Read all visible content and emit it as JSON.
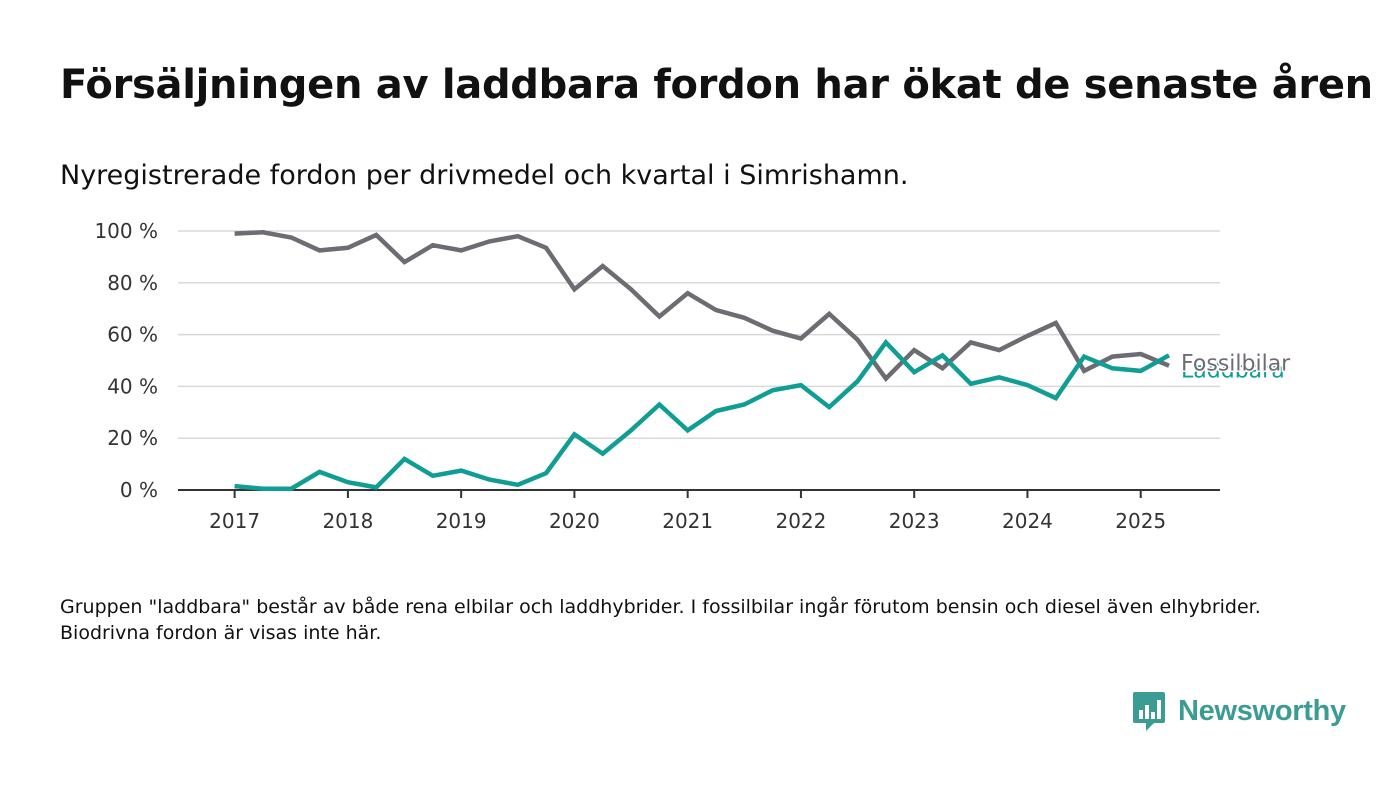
{
  "title": "Försäljningen av laddbara fordon har ökat de senaste åren",
  "subtitle": "Nyregistrerade fordon per drivmedel och kvartal i Simrishamn.",
  "note": "Gruppen \"laddbara\" består av både rena elbilar och laddhybrider. I fossilbilar ingår förutom bensin och diesel även elhybrider. Biodrivna fordon är visas inte här.",
  "logo": {
    "text": "Newsworthy",
    "color": "#3a9c93",
    "icon": "chat-bar-chart-icon"
  },
  "chart_data": {
    "type": "line",
    "title": "",
    "xlabel": "",
    "ylabel": "",
    "x_ticks": [
      "2017",
      "2018",
      "2019",
      "2020",
      "2021",
      "2022",
      "2023",
      "2024",
      "2025"
    ],
    "y_ticks": [
      "0 %",
      "20 %",
      "40 %",
      "60 %",
      "80 %",
      "100 %"
    ],
    "ylim": [
      0,
      100
    ],
    "xlim": [
      2016.5,
      2025.7
    ],
    "grid": true,
    "legend": "inline-right",
    "x": [
      2017.0,
      2017.25,
      2017.5,
      2017.75,
      2018.0,
      2018.25,
      2018.5,
      2018.75,
      2019.0,
      2019.25,
      2019.5,
      2019.75,
      2020.0,
      2020.25,
      2020.5,
      2020.75,
      2021.0,
      2021.25,
      2021.5,
      2021.75,
      2022.0,
      2022.25,
      2022.5,
      2022.75,
      2023.0,
      2023.25,
      2023.5,
      2023.75,
      2024.0,
      2024.25,
      2024.5,
      2024.75,
      2025.0,
      2025.25
    ],
    "series": [
      {
        "name": "Fossilbilar",
        "color": "#6e6c73",
        "values": [
          99,
          99.5,
          97.5,
          92.5,
          93.5,
          98.5,
          88,
          94.5,
          92.5,
          96,
          98,
          93.5,
          77.5,
          86.5,
          77.5,
          67,
          76,
          69.5,
          66.5,
          61.5,
          58.5,
          68,
          58,
          43,
          54,
          47,
          57,
          54,
          59.5,
          64.5,
          46,
          51.5,
          52.5,
          48
        ]
      },
      {
        "name": "Laddbara",
        "color": "#109e94",
        "values": [
          1.5,
          0.5,
          0.5,
          7,
          3,
          1,
          12,
          5.5,
          7.5,
          4,
          2,
          6.5,
          21.5,
          14,
          23,
          33,
          23,
          30.5,
          33,
          38.5,
          40.5,
          32,
          42,
          57,
          45.5,
          52,
          41,
          43.5,
          40.5,
          35.5,
          51.5,
          47,
          46,
          52
        ]
      }
    ]
  }
}
